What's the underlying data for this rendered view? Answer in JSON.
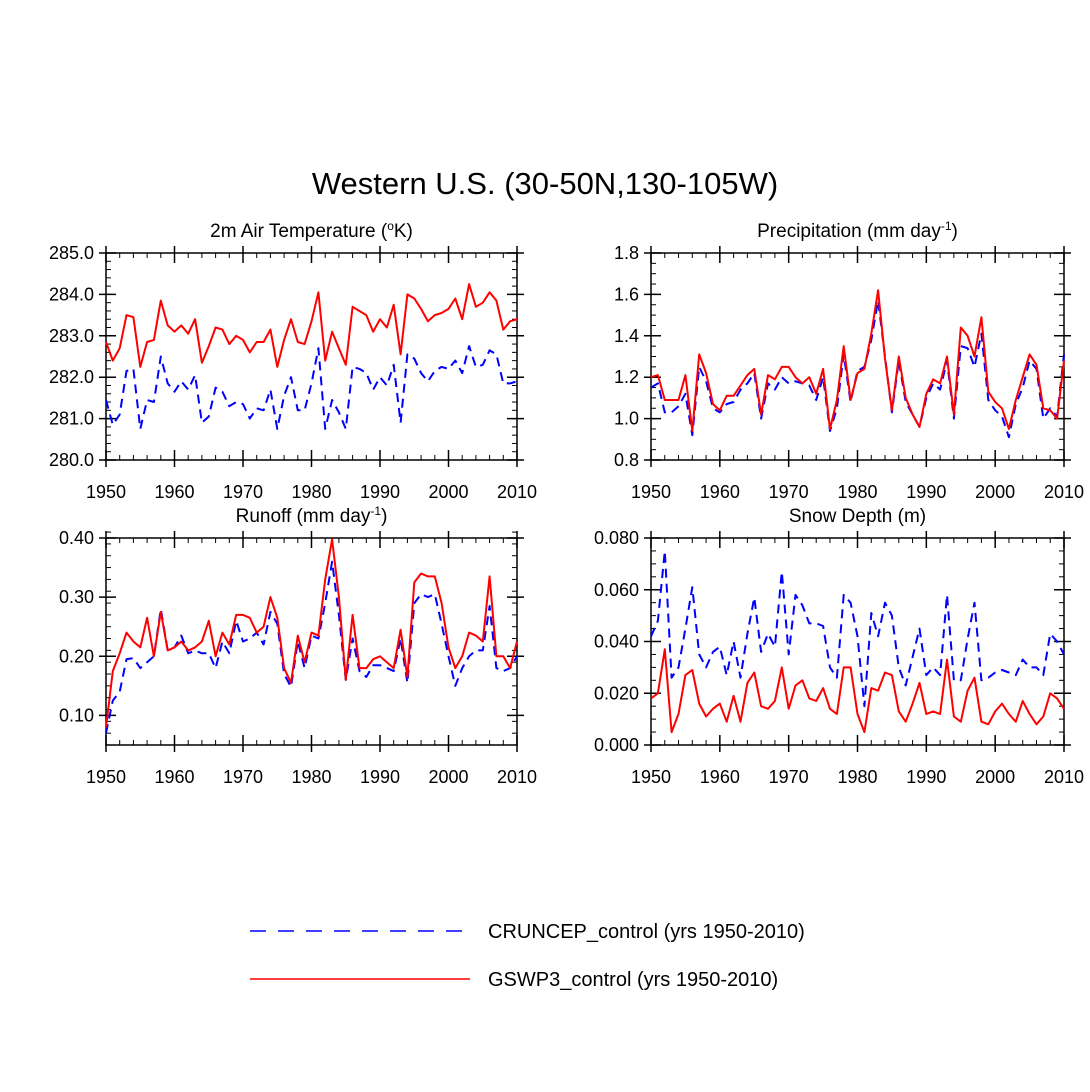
{
  "figure_title": "Western U.S. (30-50N,130-105W)",
  "legend": [
    {
      "label": "CRUNCEP_control (yrs 1950-2010)",
      "color": "#0000ff",
      "style": "dashed"
    },
    {
      "label": "GSWP3_control (yrs 1950-2010)",
      "color": "#ff0000",
      "style": "solid"
    }
  ],
  "chart_data": [
    {
      "type": "line",
      "title": "2m Air Temperature (",
      "title_sup": "o",
      "title_tail": "K)",
      "x": {
        "start": 1950,
        "step": 1,
        "range": [
          1950,
          2010
        ],
        "ticks": [
          1950,
          1960,
          1970,
          1980,
          1990,
          2000,
          2010
        ]
      },
      "y": {
        "range": [
          280.0,
          285.0
        ],
        "ticks": [
          280.0,
          281.0,
          282.0,
          283.0,
          284.0,
          285.0
        ],
        "tick_labels": [
          "280.0",
          "281.0",
          "282.0",
          "283.0",
          "284.0",
          "285.0"
        ],
        "minor_step": 0.2
      },
      "series": [
        {
          "name": "CRUNCEP_control (yrs 1950-2010)",
          "color": "#0000ff",
          "style": "dashed",
          "values": [
            281.45,
            280.85,
            281.1,
            282.15,
            282.2,
            280.75,
            281.45,
            281.4,
            282.5,
            281.85,
            281.65,
            281.9,
            281.7,
            282.05,
            280.9,
            281.05,
            281.75,
            281.65,
            281.3,
            281.4,
            281.35,
            281.0,
            281.25,
            281.2,
            281.7,
            280.75,
            281.55,
            282.0,
            281.2,
            281.2,
            281.85,
            282.7,
            280.75,
            281.45,
            281.15,
            280.75,
            282.25,
            282.2,
            282.1,
            281.7,
            282.0,
            281.8,
            282.3,
            280.9,
            282.55,
            282.45,
            282.1,
            281.9,
            282.15,
            282.25,
            282.2,
            282.4,
            282.1,
            282.75,
            282.25,
            282.3,
            282.65,
            282.55,
            281.85,
            281.85,
            281.9
          ]
        },
        {
          "name": "GSWP3_control (yrs 1950-2010)",
          "color": "#ff0000",
          "style": "solid",
          "values": [
            282.85,
            282.4,
            282.7,
            283.5,
            283.45,
            282.25,
            282.85,
            282.9,
            283.85,
            283.25,
            283.1,
            283.25,
            283.05,
            283.4,
            282.35,
            282.75,
            283.2,
            283.15,
            282.8,
            283.0,
            282.9,
            282.6,
            282.85,
            282.85,
            283.15,
            282.25,
            282.9,
            283.4,
            282.85,
            282.8,
            283.35,
            284.05,
            282.4,
            283.1,
            282.7,
            282.3,
            283.7,
            283.6,
            283.5,
            283.1,
            283.4,
            283.2,
            283.75,
            282.55,
            284.0,
            283.9,
            283.65,
            283.35,
            283.5,
            283.55,
            283.65,
            283.9,
            283.4,
            284.25,
            283.7,
            283.8,
            284.05,
            283.85,
            283.15,
            283.35,
            283.4
          ]
        }
      ]
    },
    {
      "type": "line",
      "title": "Precipitation (mm day",
      "title_sup": "-1",
      "title_tail": ")",
      "x": {
        "start": 1950,
        "step": 1,
        "range": [
          1950,
          2010
        ],
        "ticks": [
          1950,
          1960,
          1970,
          1980,
          1990,
          2000,
          2010
        ]
      },
      "y": {
        "range": [
          0.8,
          1.8
        ],
        "ticks": [
          0.8,
          1.0,
          1.2,
          1.4,
          1.6,
          1.8
        ],
        "tick_labels": [
          "0.8",
          "1.0",
          "1.2",
          "1.4",
          "1.6",
          "1.8"
        ],
        "minor_step": 0.05
      },
      "series": [
        {
          "name": "CRUNCEP_control (yrs 1950-2010)",
          "color": "#0000ff",
          "style": "dashed",
          "values": [
            1.15,
            1.17,
            1.03,
            1.03,
            1.06,
            1.12,
            0.92,
            1.25,
            1.18,
            1.05,
            1.03,
            1.07,
            1.08,
            1.14,
            1.17,
            1.22,
            1.0,
            1.17,
            1.14,
            1.2,
            1.17,
            1.18,
            1.17,
            1.16,
            1.09,
            1.2,
            0.94,
            1.05,
            1.31,
            1.08,
            1.23,
            1.25,
            1.38,
            1.57,
            1.3,
            1.03,
            1.28,
            1.08,
            1.02,
            0.96,
            1.1,
            1.17,
            1.14,
            1.28,
            1.0,
            1.35,
            1.34,
            1.25,
            1.41,
            1.09,
            1.04,
            1.01,
            0.91,
            1.07,
            1.15,
            1.28,
            1.24,
            1.0,
            1.05,
            1.01,
            1.31
          ]
        },
        {
          "name": "GSWP3_control (yrs 1950-2010)",
          "color": "#ff0000",
          "style": "solid",
          "values": [
            1.2,
            1.21,
            1.09,
            1.09,
            1.09,
            1.21,
            0.94,
            1.31,
            1.22,
            1.07,
            1.04,
            1.11,
            1.11,
            1.16,
            1.21,
            1.24,
            1.02,
            1.21,
            1.19,
            1.25,
            1.25,
            1.2,
            1.17,
            1.2,
            1.12,
            1.24,
            0.95,
            1.09,
            1.35,
            1.09,
            1.22,
            1.24,
            1.41,
            1.62,
            1.29,
            1.04,
            1.3,
            1.1,
            1.02,
            0.96,
            1.12,
            1.19,
            1.17,
            1.3,
            1.02,
            1.44,
            1.4,
            1.3,
            1.49,
            1.13,
            1.08,
            1.05,
            0.95,
            1.09,
            1.2,
            1.31,
            1.26,
            1.05,
            1.04,
            1.0,
            1.28
          ]
        }
      ]
    },
    {
      "type": "line",
      "title": "Runoff (mm day",
      "title_sup": "-1",
      "title_tail": ")",
      "x": {
        "start": 1950,
        "step": 1,
        "range": [
          1950,
          2010
        ],
        "ticks": [
          1950,
          1960,
          1970,
          1980,
          1990,
          2000,
          2010
        ]
      },
      "y": {
        "range": [
          0.05,
          0.4
        ],
        "ticks": [
          0.1,
          0.2,
          0.3,
          0.4
        ],
        "tick_labels": [
          "0.10",
          "0.20",
          "0.30",
          "0.40"
        ],
        "minor_step": 0.02
      },
      "series": [
        {
          "name": "CRUNCEP_control (yrs 1950-2010)",
          "color": "#0000ff",
          "style": "dashed",
          "values": [
            0.07,
            0.125,
            0.14,
            0.195,
            0.197,
            0.18,
            0.19,
            0.2,
            0.28,
            0.21,
            0.215,
            0.235,
            0.205,
            0.21,
            0.205,
            0.205,
            0.18,
            0.225,
            0.205,
            0.26,
            0.225,
            0.23,
            0.24,
            0.22,
            0.275,
            0.255,
            0.17,
            0.148,
            0.225,
            0.18,
            0.235,
            0.23,
            0.29,
            0.36,
            0.27,
            0.16,
            0.23,
            0.175,
            0.165,
            0.185,
            0.185,
            0.18,
            0.175,
            0.23,
            0.155,
            0.29,
            0.305,
            0.3,
            0.305,
            0.255,
            0.2,
            0.15,
            0.18,
            0.2,
            0.21,
            0.21,
            0.285,
            0.18,
            0.175,
            0.18,
            0.2
          ]
        },
        {
          "name": "GSWP3_control (yrs 1950-2010)",
          "color": "#ff0000",
          "style": "solid",
          "values": [
            0.08,
            0.175,
            0.205,
            0.24,
            0.225,
            0.215,
            0.265,
            0.2,
            0.275,
            0.21,
            0.215,
            0.225,
            0.21,
            0.215,
            0.225,
            0.26,
            0.2,
            0.24,
            0.22,
            0.27,
            0.27,
            0.265,
            0.24,
            0.25,
            0.3,
            0.265,
            0.18,
            0.155,
            0.235,
            0.19,
            0.24,
            0.235,
            0.33,
            0.398,
            0.3,
            0.16,
            0.27,
            0.18,
            0.18,
            0.195,
            0.2,
            0.19,
            0.18,
            0.245,
            0.165,
            0.325,
            0.34,
            0.335,
            0.335,
            0.29,
            0.215,
            0.18,
            0.2,
            0.24,
            0.235,
            0.225,
            0.335,
            0.2,
            0.2,
            0.18,
            0.225
          ]
        }
      ]
    },
    {
      "type": "line",
      "title": "Snow Depth (m)",
      "title_sup": "",
      "title_tail": "",
      "x": {
        "start": 1950,
        "step": 1,
        "range": [
          1950,
          2010
        ],
        "ticks": [
          1950,
          1960,
          1970,
          1980,
          1990,
          2000,
          2010
        ]
      },
      "y": {
        "range": [
          0.0,
          0.08
        ],
        "ticks": [
          0.0,
          0.02,
          0.04,
          0.06,
          0.08
        ],
        "tick_labels": [
          "0.000",
          "0.020",
          "0.040",
          "0.060",
          "0.080"
        ],
        "minor_step": 0.005
      },
      "series": [
        {
          "name": "CRUNCEP_control (yrs 1950-2010)",
          "color": "#0000ff",
          "style": "dashed",
          "values": [
            0.042,
            0.048,
            0.075,
            0.026,
            0.03,
            0.045,
            0.061,
            0.035,
            0.03,
            0.036,
            0.038,
            0.027,
            0.04,
            0.026,
            0.043,
            0.057,
            0.036,
            0.043,
            0.038,
            0.067,
            0.035,
            0.058,
            0.054,
            0.047,
            0.047,
            0.046,
            0.03,
            0.026,
            0.058,
            0.055,
            0.042,
            0.015,
            0.051,
            0.042,
            0.055,
            0.05,
            0.03,
            0.023,
            0.034,
            0.045,
            0.027,
            0.03,
            0.027,
            0.058,
            0.025,
            0.025,
            0.041,
            0.055,
            0.025,
            0.026,
            0.028,
            0.029,
            0.028,
            0.027,
            0.033,
            0.03,
            0.03,
            0.027,
            0.043,
            0.04,
            0.035
          ]
        },
        {
          "name": "GSWP3_control (yrs 1950-2010)",
          "color": "#ff0000",
          "style": "solid",
          "values": [
            0.018,
            0.02,
            0.037,
            0.005,
            0.012,
            0.027,
            0.029,
            0.016,
            0.011,
            0.014,
            0.016,
            0.009,
            0.019,
            0.009,
            0.024,
            0.028,
            0.015,
            0.014,
            0.017,
            0.03,
            0.014,
            0.023,
            0.025,
            0.018,
            0.017,
            0.022,
            0.014,
            0.012,
            0.03,
            0.03,
            0.012,
            0.005,
            0.022,
            0.021,
            0.028,
            0.027,
            0.013,
            0.009,
            0.016,
            0.024,
            0.012,
            0.013,
            0.012,
            0.033,
            0.011,
            0.009,
            0.021,
            0.026,
            0.009,
            0.008,
            0.013,
            0.016,
            0.012,
            0.009,
            0.017,
            0.012,
            0.008,
            0.011,
            0.02,
            0.018,
            0.014
          ]
        }
      ]
    }
  ]
}
